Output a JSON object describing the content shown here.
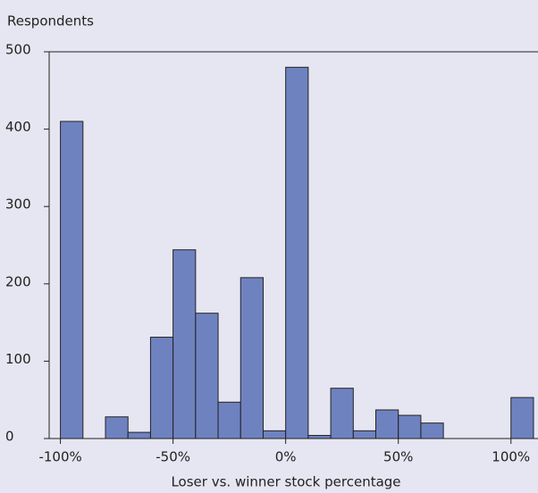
{
  "chart_data": {
    "type": "histogram",
    "y_label": "Respondents",
    "x_label": "Loser vs. winner stock percentage",
    "bins": [
      -100,
      -90,
      -80,
      -70,
      -60,
      -50,
      -40,
      -30,
      -20,
      -10,
      0,
      10,
      20,
      30,
      40,
      50,
      60,
      70,
      80,
      90,
      100,
      110
    ],
    "values": [
      410,
      0,
      28,
      8,
      131,
      244,
      162,
      47,
      208,
      10,
      480,
      4,
      65,
      10,
      37,
      30,
      20,
      0,
      0,
      0,
      53
    ],
    "color": "#6f82c0",
    "xlim": [
      -105,
      112
    ],
    "ylim": [
      0,
      500
    ],
    "xticks": [
      {
        "value": -100,
        "label": "-100%"
      },
      {
        "value": -50,
        "label": "-50%"
      },
      {
        "value": 0,
        "label": "0%"
      },
      {
        "value": 50,
        "label": "50%"
      },
      {
        "value": 100,
        "label": "100%"
      }
    ],
    "yticks": [
      0,
      100,
      200,
      300,
      400,
      500
    ]
  }
}
